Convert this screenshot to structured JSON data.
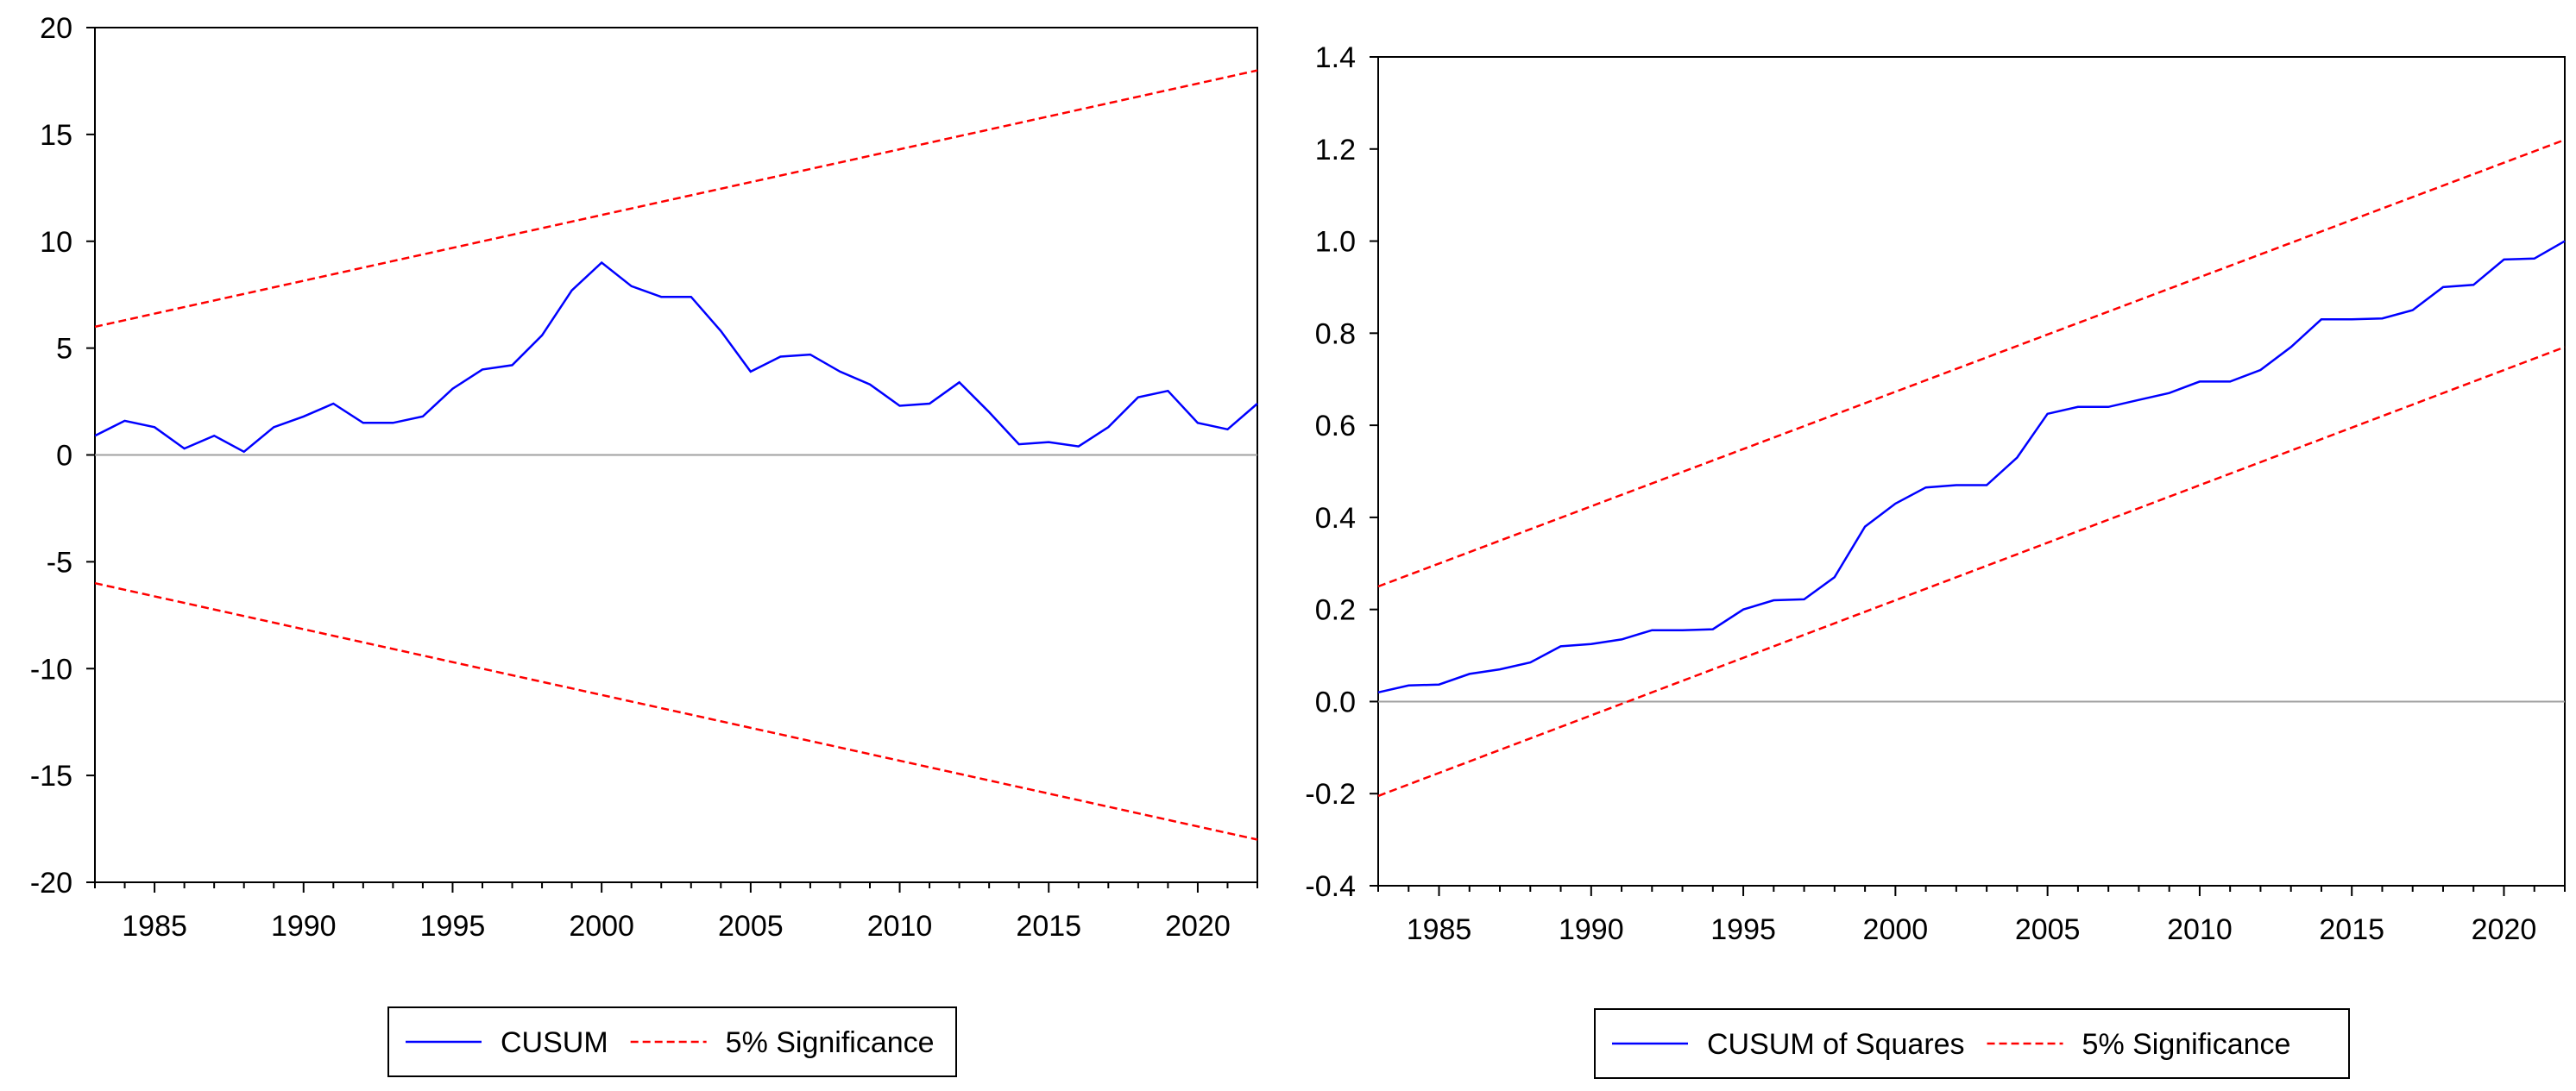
{
  "colors": {
    "series": "#0000ff",
    "bound": "#ff0000",
    "zero": "#a0a0a0",
    "frame": "#000000"
  },
  "chart_data": [
    {
      "type": "line",
      "title": "",
      "xlabel": "",
      "ylabel": "",
      "xlim": [
        1983,
        2022
      ],
      "ylim": [
        -20,
        20
      ],
      "x_ticks": [
        1985,
        1990,
        1995,
        2000,
        2005,
        2010,
        2015,
        2020
      ],
      "x_tick_labels": [
        "1985",
        "1990",
        "1995",
        "2000",
        "2005",
        "2010",
        "2015",
        "2020"
      ],
      "y_ticks": [
        20,
        15,
        10,
        5,
        0,
        -5,
        -10,
        -15,
        -20
      ],
      "y_tick_labels": [
        "20",
        "15",
        "10",
        "5",
        "0",
        "-5",
        "-10",
        "-15",
        "-20"
      ],
      "zero_line": 0,
      "series": [
        {
          "name": "CUSUM",
          "style": "solid",
          "x": [
            1983,
            1984,
            1985,
            1986,
            1987,
            1988,
            1989,
            1990,
            1991,
            1992,
            1993,
            1994,
            1995,
            1996,
            1997,
            1998,
            1999,
            2000,
            2001,
            2002,
            2003,
            2004,
            2005,
            2006,
            2007,
            2008,
            2009,
            2010,
            2011,
            2012,
            2013,
            2014,
            2015,
            2016,
            2017,
            2018,
            2019,
            2020,
            2021,
            2022
          ],
          "values": [
            0.9,
            1.6,
            1.3,
            0.3,
            0.9,
            0.15,
            1.3,
            1.8,
            2.4,
            1.5,
            1.5,
            1.8,
            3.1,
            4.0,
            4.2,
            5.6,
            7.7,
            9.0,
            7.9,
            7.4,
            7.4,
            5.8,
            3.9,
            4.6,
            4.7,
            3.9,
            3.3,
            2.3,
            2.4,
            3.4,
            2.0,
            0.5,
            0.6,
            0.4,
            1.3,
            2.7,
            3.0,
            1.5,
            1.2,
            2.4
          ]
        },
        {
          "name": "5% Significance",
          "style": "dashed",
          "x": [
            1983,
            2022
          ],
          "values": [
            6.0,
            18.0
          ]
        },
        {
          "name": "5% Significance",
          "style": "dashed",
          "x": [
            1983,
            2022
          ],
          "values": [
            -6.0,
            -18.0
          ]
        }
      ],
      "legend": {
        "position": "bottom-center",
        "entries": [
          {
            "label": "CUSUM",
            "style": "solid"
          },
          {
            "label": "5% Significance",
            "style": "dashed"
          }
        ]
      }
    },
    {
      "type": "line",
      "title": "",
      "xlabel": "",
      "ylabel": "",
      "xlim": [
        1983,
        2022
      ],
      "ylim": [
        -0.4,
        1.4
      ],
      "x_ticks": [
        1985,
        1990,
        1995,
        2000,
        2005,
        2010,
        2015,
        2020
      ],
      "x_tick_labels": [
        "1985",
        "1990",
        "1995",
        "2000",
        "2005",
        "2010",
        "2015",
        "2020"
      ],
      "y_ticks": [
        1.4,
        1.2,
        1.0,
        0.8,
        0.6,
        0.4,
        0.2,
        0.0,
        -0.2,
        -0.4
      ],
      "y_tick_labels": [
        "1.4",
        "1.2",
        "1.0",
        "0.8",
        "0.6",
        "0.4",
        "0.2",
        "0.0",
        "-0.2",
        "-0.4"
      ],
      "zero_line": 0,
      "series": [
        {
          "name": "CUSUM of Squares",
          "style": "solid",
          "x": [
            1983,
            1984,
            1985,
            1986,
            1987,
            1988,
            1989,
            1990,
            1991,
            1992,
            1993,
            1994,
            1995,
            1996,
            1997,
            1998,
            1999,
            2000,
            2001,
            2002,
            2003,
            2004,
            2005,
            2006,
            2007,
            2008,
            2009,
            2010,
            2011,
            2012,
            2013,
            2014,
            2015,
            2016,
            2017,
            2018,
            2019,
            2020,
            2021,
            2022
          ],
          "values": [
            0.02,
            0.035,
            0.037,
            0.06,
            0.07,
            0.085,
            0.12,
            0.125,
            0.135,
            0.155,
            0.155,
            0.157,
            0.2,
            0.22,
            0.222,
            0.27,
            0.38,
            0.43,
            0.465,
            0.47,
            0.47,
            0.53,
            0.625,
            0.64,
            0.64,
            0.655,
            0.67,
            0.695,
            0.695,
            0.72,
            0.77,
            0.83,
            0.83,
            0.832,
            0.85,
            0.9,
            0.905,
            0.96,
            0.962,
            1.0
          ]
        },
        {
          "name": "5% Significance",
          "style": "dashed",
          "x": [
            1983,
            2022
          ],
          "values": [
            0.25,
            1.22
          ]
        },
        {
          "name": "5% Significance",
          "style": "dashed",
          "x": [
            1983,
            2022
          ],
          "values": [
            -0.205,
            0.77
          ]
        }
      ],
      "legend": {
        "position": "bottom-center",
        "entries": [
          {
            "label": "CUSUM of Squares",
            "style": "solid"
          },
          {
            "label": "5% Significance",
            "style": "dashed"
          }
        ]
      }
    }
  ]
}
